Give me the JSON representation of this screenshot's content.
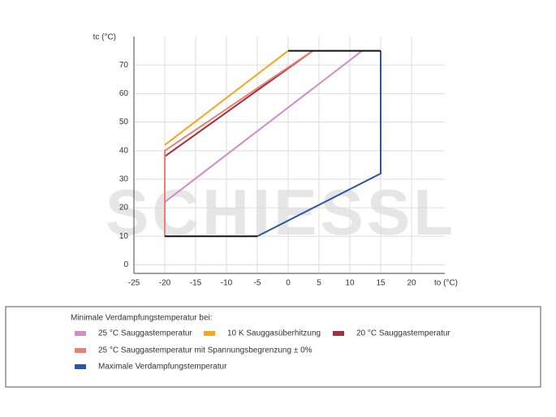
{
  "chart_data": {
    "type": "line",
    "watermark": "SCHIESSL",
    "x_label": "to (°C)",
    "y_label": "tc (°C)",
    "legend_title": "Minimale Verdampfungstemperatur bei:",
    "xlim": [
      -25,
      25
    ],
    "xticks": [
      -25,
      -20,
      -15,
      -10,
      -5,
      0,
      5,
      10,
      15,
      20
    ],
    "ylim": [
      -3,
      80
    ],
    "yticks": [
      0,
      10,
      20,
      30,
      40,
      50,
      60,
      70
    ],
    "grid": true,
    "envelope": {
      "color": "#111111",
      "segments": [
        {
          "x": [
            -20,
            -5
          ],
          "values": [
            10,
            10
          ]
        },
        {
          "x": [
            0,
            15
          ],
          "values": [
            75,
            75
          ]
        }
      ]
    },
    "series": [
      {
        "name": "25 °C Sauggastemperatur",
        "color": "#d38cc9",
        "x": [
          -20,
          12
        ],
        "values": [
          22,
          75
        ]
      },
      {
        "name": "10 K Sauggasüberhitzung",
        "color": "#f5a623",
        "x": [
          -20,
          0
        ],
        "values": [
          42,
          75
        ]
      },
      {
        "name": "20 °C Sauggastemperatur",
        "color": "#a4303a",
        "x": [
          -20,
          -20,
          4
        ],
        "values": [
          10,
          38,
          75
        ]
      },
      {
        "name": "25 °C Sauggastemperatur mit Spannungsbegrenzung ± 0%",
        "color": "#ec7e74",
        "x": [
          -20,
          -20,
          4
        ],
        "values": [
          10,
          40,
          75
        ]
      },
      {
        "name": "Maximale Verdampfungstemperatur",
        "color": "#2b56a5",
        "x": [
          -5,
          15,
          15
        ],
        "values": [
          10,
          32,
          75
        ]
      }
    ]
  }
}
